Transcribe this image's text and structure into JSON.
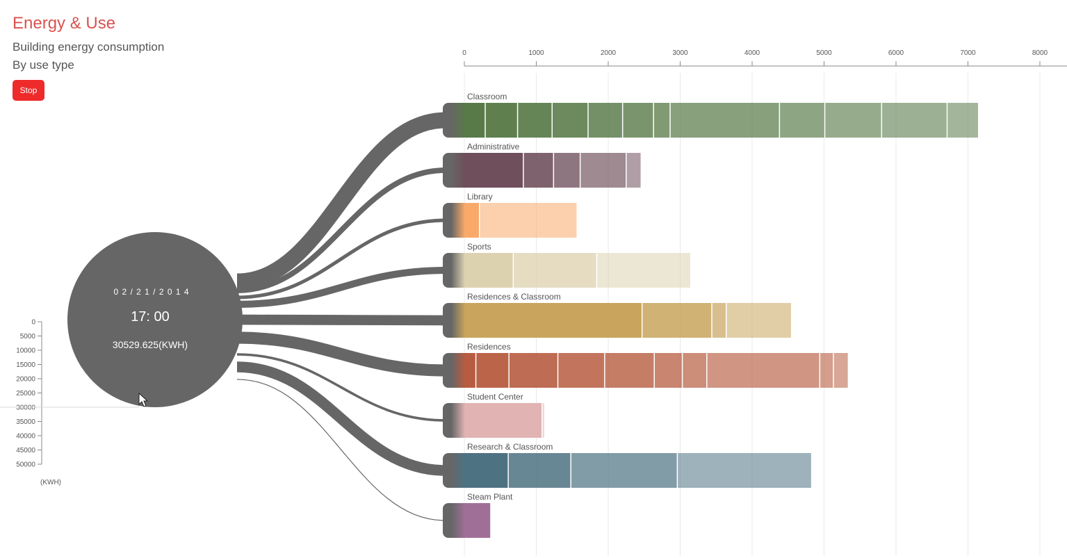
{
  "header": {
    "title": "Energy & Use",
    "subtitle": "Building energy consumption",
    "subtitle2": "By use type",
    "stop_label": "Stop"
  },
  "hub": {
    "date": "0 2 / 2 1 / 2 0 1 4",
    "time": "17: 00",
    "total": "30529.625(KWH)",
    "color": "#666666"
  },
  "scale_axis": {
    "ticks": [
      "0",
      "5000",
      "10000",
      "15000",
      "20000",
      "25000",
      "30000",
      "35000",
      "40000",
      "45000",
      "50000"
    ],
    "unit": "(KWH)",
    "max": 50000,
    "marker_value": 30000
  },
  "chart_data": {
    "type": "bar",
    "stacked": true,
    "xlim": [
      0,
      8000
    ],
    "xticks": [
      0,
      1000,
      2000,
      3000,
      4000,
      5000,
      6000,
      7000,
      8000
    ],
    "grid": true,
    "categories": [
      {
        "name": "Classroom",
        "color": "#587a48",
        "segments": [
          290,
          450,
          480,
          500,
          480,
          430,
          230,
          1520,
          630,
          790,
          910,
          430
        ]
      },
      {
        "name": "Administrative",
        "color": "#6e4f5b",
        "segments": [
          820,
          420,
          370,
          640,
          200
        ]
      },
      {
        "name": "Library",
        "color": "#f9a96a",
        "segments": [
          210,
          1350
        ]
      },
      {
        "name": "Sports",
        "color": "#ddd2b0",
        "segments": [
          680,
          1160,
          1300
        ]
      },
      {
        "name": "Residences & Classroom",
        "color": "#c8a45c",
        "segments": [
          2470,
          970,
          200,
          900
        ]
      },
      {
        "name": "Residences",
        "color": "#b75c40",
        "segments": [
          160,
          460,
          680,
          650,
          690,
          390,
          340,
          1570,
          190,
          200
        ]
      },
      {
        "name": "Student Center",
        "color": "#e1b3b3",
        "segments": [
          1080,
          30
        ]
      },
      {
        "name": "Research & Classroom",
        "color": "#4d7282",
        "segments": [
          610,
          870,
          1480,
          1860
        ]
      },
      {
        "name": "Steam Plant",
        "color": "#a06f98",
        "segments": [
          360
        ]
      }
    ]
  }
}
